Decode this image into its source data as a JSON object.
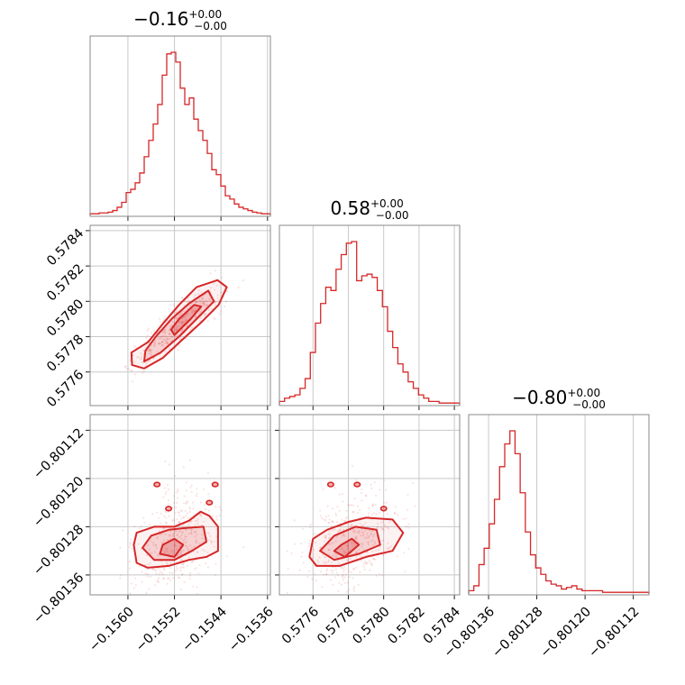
{
  "chart_data": {
    "type": "corner",
    "color": "#d62728",
    "params": [
      {
        "title_value": "−0.16",
        "title_plus": "+0.00",
        "title_minus": "−0.00",
        "range": [
          -0.15665,
          -0.15355
        ],
        "ticks": [
          -0.156,
          -0.1552,
          -0.1544,
          -0.1536
        ],
        "tick_labels": [
          "−0.1560",
          "−0.1552",
          "−0.1544",
          "−0.1536"
        ],
        "hist": [
          0.01,
          0.01,
          0.015,
          0.015,
          0.02,
          0.03,
          0.05,
          0.08,
          0.14,
          0.16,
          0.2,
          0.26,
          0.36,
          0.46,
          0.56,
          0.68,
          0.86,
          0.99,
          1.0,
          0.94,
          0.78,
          0.68,
          0.72,
          0.59,
          0.52,
          0.46,
          0.38,
          0.28,
          0.25,
          0.18,
          0.12,
          0.1,
          0.07,
          0.05,
          0.04,
          0.03,
          0.02,
          0.015,
          0.01,
          0.01
        ]
      },
      {
        "title_value": "0.58",
        "title_plus": "+0.00",
        "title_minus": "−0.00",
        "range": [
          0.57741,
          0.57843
        ],
        "ticks": [
          0.5776,
          0.5778,
          0.578,
          0.5782,
          0.5784
        ],
        "tick_labels": [
          "0.5776",
          "0.5778",
          "0.5780",
          "0.5782",
          "0.5784"
        ],
        "hist": [
          0.02,
          0.04,
          0.05,
          0.06,
          0.1,
          0.16,
          0.32,
          0.5,
          0.62,
          0.72,
          0.7,
          0.83,
          0.92,
          0.99,
          1.0,
          0.76,
          0.79,
          0.8,
          0.78,
          0.7,
          0.6,
          0.45,
          0.35,
          0.25,
          0.2,
          0.14,
          0.1,
          0.06,
          0.04,
          0.02,
          0.02,
          0.01,
          0.01,
          0.01,
          0.01
        ]
      },
      {
        "title_value": "−0.80",
        "title_plus": "+0.00",
        "title_minus": "−0.00",
        "range": [
          -0.801393,
          -0.801094
        ],
        "ticks": [
          -0.80136,
          -0.80128,
          -0.8012,
          -0.80112
        ],
        "tick_labels": [
          "−0.80136",
          "−0.80128",
          "−0.80120",
          "−0.80112"
        ],
        "hist": [
          0.02,
          0.05,
          0.18,
          0.28,
          0.43,
          0.58,
          0.78,
          0.92,
          1.0,
          0.86,
          0.62,
          0.38,
          0.24,
          0.16,
          0.12,
          0.08,
          0.06,
          0.05,
          0.03,
          0.04,
          0.05,
          0.03,
          0.02,
          0.02,
          0.02,
          0.02,
          0.01,
          0.01,
          0.01,
          0.01,
          0.01,
          0.01,
          0.01,
          0.01,
          0.01
        ]
      }
    ],
    "contours": [
      {
        "pair": [
          0,
          1
        ],
        "levels": [
          [
            [
              -0.15593,
              0.57764
            ],
            [
              -0.15572,
              0.57762
            ],
            [
              -0.1554,
              0.57768
            ],
            [
              -0.15514,
              0.57776
            ],
            [
              -0.15474,
              0.57788
            ],
            [
              -0.15444,
              0.57798
            ],
            [
              -0.1543,
              0.57808
            ],
            [
              -0.15446,
              0.57812
            ],
            [
              -0.15482,
              0.57808
            ],
            [
              -0.15512,
              0.57798
            ],
            [
              -0.15538,
              0.57788
            ],
            [
              -0.15565,
              0.57777
            ],
            [
              -0.15594,
              0.57771
            ]
          ],
          [
            [
              -0.15572,
              0.57766
            ],
            [
              -0.15544,
              0.57771
            ],
            [
              -0.15512,
              0.5778
            ],
            [
              -0.15476,
              0.57792
            ],
            [
              -0.15452,
              0.578
            ],
            [
              -0.15462,
              0.57806
            ],
            [
              -0.15494,
              0.57799
            ],
            [
              -0.15525,
              0.5779
            ],
            [
              -0.15552,
              0.5778
            ],
            [
              -0.1557,
              0.57772
            ]
          ],
          [
            [
              -0.1552,
              0.57781
            ],
            [
              -0.15492,
              0.5779
            ],
            [
              -0.15474,
              0.57797
            ],
            [
              -0.15486,
              0.57798
            ],
            [
              -0.15512,
              0.5779
            ],
            [
              -0.15526,
              0.57784
            ]
          ]
        ],
        "fills": [
          0.06,
          0.16,
          0.26
        ]
      },
      {
        "pair": [
          0,
          2
        ],
        "levels": [
          [
            [
              -0.1559,
              -0.80131
            ],
            [
              -0.15585,
              -0.80134
            ],
            [
              -0.15566,
              -0.801348
            ],
            [
              -0.1553,
              -0.801345
            ],
            [
              -0.15495,
              -0.801335
            ],
            [
              -0.15465,
              -0.80133
            ],
            [
              -0.15445,
              -0.80132
            ],
            [
              -0.15445,
              -0.80128
            ],
            [
              -0.1546,
              -0.801262
            ],
            [
              -0.15475,
              -0.801255
            ],
            [
              -0.15495,
              -0.80127
            ],
            [
              -0.1552,
              -0.80128
            ],
            [
              -0.15555,
              -0.80128
            ],
            [
              -0.15585,
              -0.80129
            ]
          ],
          [
            [
              -0.15575,
              -0.801315
            ],
            [
              -0.15555,
              -0.801335
            ],
            [
              -0.1552,
              -0.801335
            ],
            [
              -0.1549,
              -0.80132
            ],
            [
              -0.15465,
              -0.801305
            ],
            [
              -0.1547,
              -0.80128
            ],
            [
              -0.155,
              -0.801282
            ],
            [
              -0.1553,
              -0.801285
            ],
            [
              -0.1556,
              -0.801295
            ]
          ],
          [
            [
              -0.15545,
              -0.801325
            ],
            [
              -0.1552,
              -0.80133
            ],
            [
              -0.15505,
              -0.80131
            ],
            [
              -0.1552,
              -0.8013
            ],
            [
              -0.1554,
              -0.80131
            ]
          ]
        ],
        "extra_blobs": [
          [
            -0.1555,
            -0.80121
          ],
          [
            -0.1545,
            -0.80121
          ],
          [
            -0.1546,
            -0.80124
          ],
          [
            -0.1553,
            -0.80125
          ]
        ],
        "fills": [
          0.06,
          0.16,
          0.26
        ]
      },
      {
        "pair": [
          1,
          2
        ],
        "levels": [
          [
            [
              0.57758,
              -0.80133
            ],
            [
              0.57762,
              -0.801345
            ],
            [
              0.57775,
              -0.801345
            ],
            [
              0.5779,
              -0.80133
            ],
            [
              0.57805,
              -0.80132
            ],
            [
              0.57811,
              -0.80129
            ],
            [
              0.57805,
              -0.801268
            ],
            [
              0.5779,
              -0.801265
            ],
            [
              0.5778,
              -0.801272
            ],
            [
              0.57768,
              -0.801285
            ],
            [
              0.5776,
              -0.8013
            ]
          ],
          [
            [
              0.57764,
              -0.80132
            ],
            [
              0.57772,
              -0.801335
            ],
            [
              0.57786,
              -0.801325
            ],
            [
              0.57798,
              -0.80131
            ],
            [
              0.57796,
              -0.801285
            ],
            [
              0.57784,
              -0.80128
            ],
            [
              0.57772,
              -0.801295
            ]
          ],
          [
            [
              0.57772,
              -0.80132
            ],
            [
              0.57778,
              -0.80133
            ],
            [
              0.57786,
              -0.80131
            ],
            [
              0.57782,
              -0.8013
            ],
            [
              0.57776,
              -0.80131
            ]
          ]
        ],
        "extra_blobs": [
          [
            0.5777,
            -0.80121
          ],
          [
            0.57785,
            -0.80121
          ],
          [
            0.578,
            -0.80125
          ]
        ],
        "fills": [
          0.06,
          0.16,
          0.26
        ]
      }
    ]
  }
}
